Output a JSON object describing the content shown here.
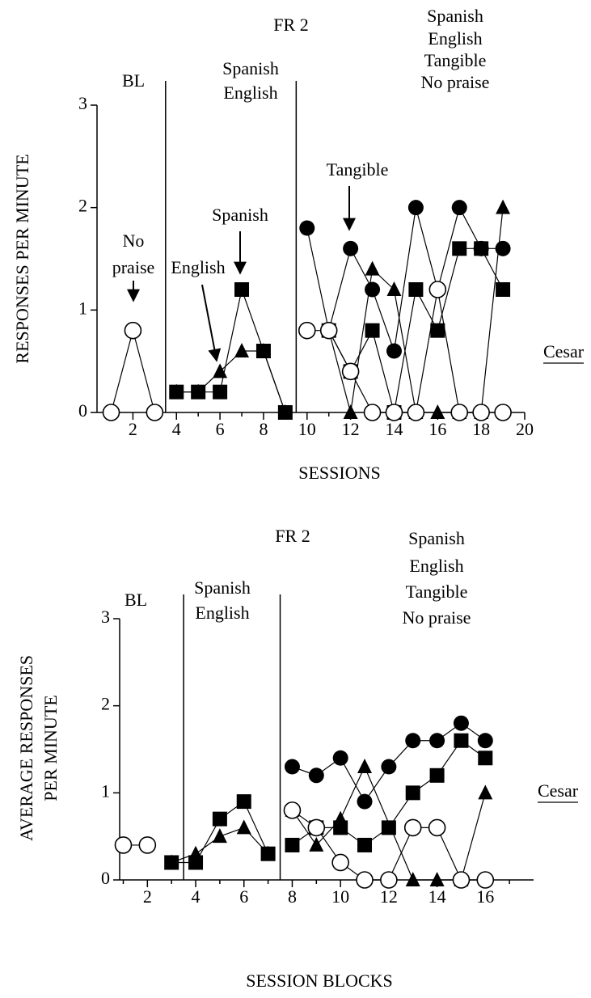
{
  "chart_data": [
    {
      "type": "line",
      "xlabel": "SESSIONS",
      "ylabel": [
        "RESPONSES PER MINUTE"
      ],
      "xlim": [
        0.35,
        20
      ],
      "ylim": [
        0,
        3
      ],
      "xticks": [
        2,
        4,
        6,
        8,
        10,
        12,
        14,
        16,
        18,
        20
      ],
      "xminorticks": [
        1,
        3,
        5,
        7,
        9,
        11,
        13,
        15,
        17,
        19
      ],
      "yticks": [
        0,
        1,
        2,
        3
      ],
      "phase_lines": [
        3.5,
        9.5
      ],
      "condition_label": "FR 2",
      "phase_labels": [
        [
          "BL"
        ],
        [
          "Spanish",
          "English"
        ],
        [
          "Spanish",
          "English",
          "Tangible",
          "No praise"
        ]
      ],
      "annotations": [
        {
          "text": [
            "No",
            "praise"
          ]
        },
        {
          "text": [
            "English"
          ]
        },
        {
          "text": [
            "Spanish"
          ]
        },
        {
          "text": [
            "Tangible"
          ]
        }
      ],
      "participant": "Cesar",
      "series": [
        {
          "marker": "square",
          "color": "#000000",
          "x": [
            4,
            5,
            6,
            7,
            8,
            9
          ],
          "values": [
            0.2,
            0.2,
            0.2,
            1.2,
            0.6,
            0
          ]
        },
        {
          "marker": "square",
          "color": "#000000",
          "x": [
            11,
            12,
            13,
            14,
            15,
            16,
            17,
            18,
            19
          ],
          "values": [
            0.8,
            0.4,
            0.8,
            0,
            1.2,
            0.8,
            1.6,
            1.6,
            1.2
          ]
        },
        {
          "marker": "triangle",
          "color": "#000000",
          "x": [
            4,
            5,
            6,
            7,
            8,
            9
          ],
          "values": [
            0.2,
            0.2,
            0.4,
            0.6,
            0.6,
            0
          ]
        },
        {
          "marker": "triangle",
          "color": "#000000",
          "x": [
            11,
            12,
            13,
            14,
            15,
            16,
            17,
            18,
            19
          ],
          "values": [
            0.8,
            0,
            1.4,
            1.2,
            0,
            0,
            0,
            0,
            2
          ]
        },
        {
          "marker": "circle",
          "color": "#000000",
          "x": [
            10,
            11,
            12,
            13,
            14,
            15,
            16,
            17,
            18,
            19
          ],
          "values": [
            1.8,
            0.8,
            1.6,
            1.2,
            0.6,
            2,
            1.2,
            2,
            1.6,
            1.6
          ]
        },
        {
          "marker": "circle-open",
          "color": "#000000",
          "x": [
            1,
            2,
            3
          ],
          "values": [
            0,
            0.8,
            0
          ]
        },
        {
          "marker": "circle-open",
          "color": "#000000",
          "x": [
            10,
            11,
            12,
            13,
            14,
            15,
            16,
            17,
            18,
            19
          ],
          "values": [
            0.8,
            0.8,
            0.4,
            0,
            0,
            0,
            1.2,
            0,
            0,
            0
          ]
        }
      ]
    },
    {
      "type": "line",
      "xlabel": "SESSION BLOCKS",
      "ylabel": [
        "AVERAGE RESPONSES",
        "PER MINUTE"
      ],
      "xlim": [
        0.85,
        18
      ],
      "ylim": [
        0,
        3
      ],
      "xticks": [
        2,
        4,
        6,
        8,
        10,
        12,
        14,
        16
      ],
      "xminorticks": [
        1,
        3,
        5,
        7,
        9,
        11,
        13,
        15,
        17
      ],
      "yticks": [
        0,
        1,
        2,
        3
      ],
      "phase_lines": [
        3.5,
        7.5
      ],
      "condition_label": "FR 2",
      "phase_labels": [
        [
          "BL"
        ],
        [
          "Spanish",
          "English"
        ],
        [
          "Spanish",
          "English",
          "Tangible",
          "No praise"
        ]
      ],
      "participant": "Cesar",
      "series": [
        {
          "marker": "square",
          "color": "#000000",
          "x": [
            3,
            4,
            5,
            6,
            7
          ],
          "values": [
            0.2,
            0.2,
            0.7,
            0.9,
            0.3
          ]
        },
        {
          "marker": "square",
          "color": "#000000",
          "x": [
            8,
            9,
            10,
            11,
            12,
            13,
            14,
            15,
            16
          ],
          "values": [
            0.4,
            0.6,
            0.6,
            0.4,
            0.6,
            1.0,
            1.2,
            1.6,
            1.4
          ]
        },
        {
          "marker": "triangle",
          "color": "#000000",
          "x": [
            3,
            4,
            5,
            6,
            7
          ],
          "values": [
            0.2,
            0.3,
            0.5,
            0.6,
            0.3
          ]
        },
        {
          "marker": "triangle",
          "color": "#000000",
          "x": [
            8,
            9,
            10,
            11,
            13,
            14,
            15,
            16
          ],
          "values": [
            0.8,
            0.4,
            0.7,
            1.3,
            0,
            0,
            0,
            1.0
          ]
        },
        {
          "marker": "circle",
          "color": "#000000",
          "x": [
            8,
            9,
            10,
            11,
            12,
            13,
            14,
            15,
            16
          ],
          "values": [
            1.3,
            1.2,
            1.4,
            0.9,
            1.3,
            1.6,
            1.6,
            1.8,
            1.6
          ]
        },
        {
          "marker": "circle-open",
          "color": "#000000",
          "x": [
            1,
            2
          ],
          "values": [
            0.4,
            0.4
          ]
        },
        {
          "marker": "circle-open",
          "color": "#000000",
          "x": [
            8,
            9,
            10,
            11,
            12,
            13,
            14,
            15,
            16
          ],
          "values": [
            0.8,
            0.6,
            0.2,
            0,
            0,
            0.6,
            0.6,
            0,
            0
          ]
        }
      ]
    }
  ]
}
